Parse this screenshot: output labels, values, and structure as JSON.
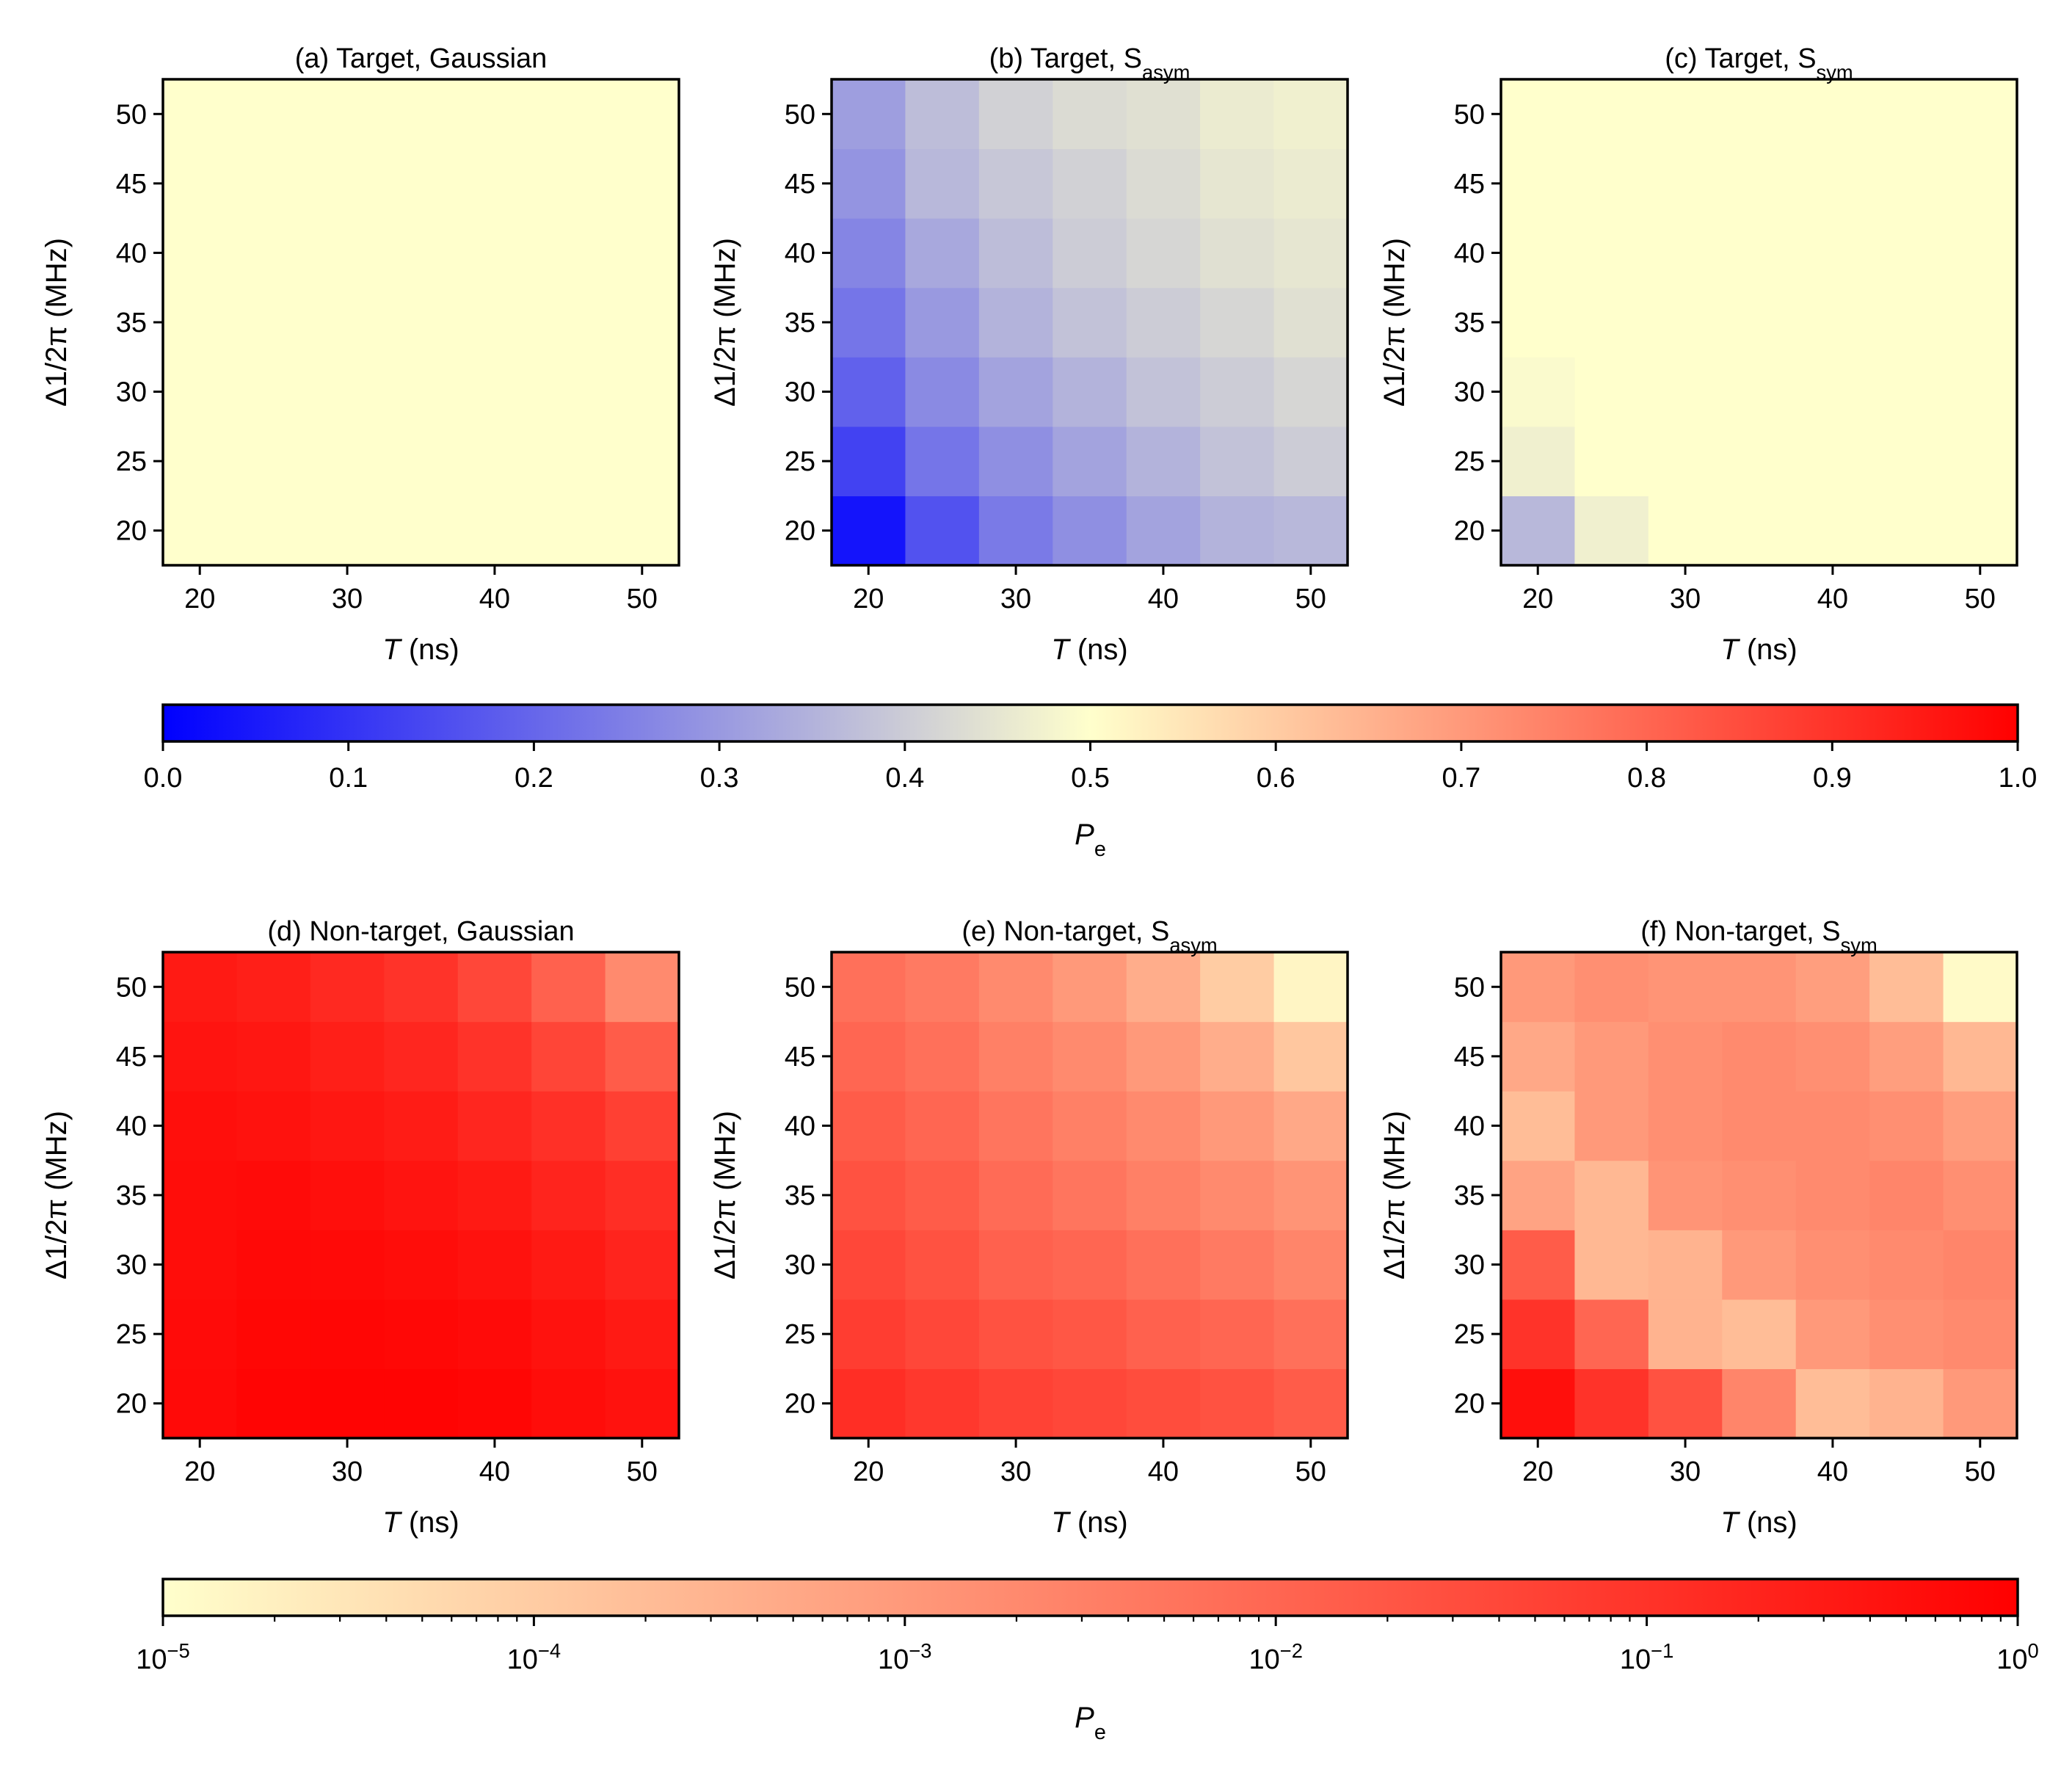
{
  "figure": {
    "x_values": [
      20,
      25,
      30,
      35,
      40,
      45,
      50
    ],
    "y_values": [
      20,
      25,
      30,
      35,
      40,
      45,
      50
    ]
  },
  "colors": {
    "linear_cmap": [
      "#0000ff",
      "#ffffcc",
      "#ff0000"
    ],
    "log_cmap": [
      "#ffffcc",
      "#ff0000"
    ]
  },
  "chart_data": [
    {
      "type": "heatmap",
      "panel": "a",
      "title": "(a) Target, Gaussian",
      "title_sub": "",
      "xlabel_var": "T",
      "xlabel_rest": " (ns)",
      "ylabel": "Δ1/2π (MHz)",
      "xticks": [
        "20",
        "30",
        "40",
        "50"
      ],
      "yticks": [
        "20",
        "25",
        "30",
        "35",
        "40",
        "45",
        "50"
      ],
      "scale": "linear",
      "values": [
        [
          0.5,
          0.5,
          0.5,
          0.5,
          0.5,
          0.5,
          0.5
        ],
        [
          0.5,
          0.5,
          0.5,
          0.5,
          0.5,
          0.5,
          0.5
        ],
        [
          0.5,
          0.5,
          0.5,
          0.5,
          0.5,
          0.5,
          0.5
        ],
        [
          0.5,
          0.5,
          0.5,
          0.5,
          0.5,
          0.5,
          0.5
        ],
        [
          0.5,
          0.5,
          0.5,
          0.5,
          0.5,
          0.5,
          0.5
        ],
        [
          0.5,
          0.5,
          0.5,
          0.5,
          0.5,
          0.5,
          0.5
        ],
        [
          0.5,
          0.5,
          0.5,
          0.5,
          0.5,
          0.5,
          0.5
        ]
      ]
    },
    {
      "type": "heatmap",
      "panel": "b",
      "title": "(b) Target, S",
      "title_sub": "asym",
      "xlabel_var": "T",
      "xlabel_rest": " (ns)",
      "ylabel": "Δ1/2π (MHz)",
      "xticks": [
        "20",
        "30",
        "40",
        "50"
      ],
      "yticks": [
        "20",
        "25",
        "30",
        "35",
        "40",
        "45",
        "50"
      ],
      "scale": "linear",
      "values": [
        [
          0.04,
          0.16,
          0.24,
          0.28,
          0.32,
          0.35,
          0.36
        ],
        [
          0.13,
          0.23,
          0.28,
          0.32,
          0.35,
          0.38,
          0.4
        ],
        [
          0.19,
          0.27,
          0.32,
          0.35,
          0.38,
          0.4,
          0.42
        ],
        [
          0.23,
          0.3,
          0.35,
          0.38,
          0.4,
          0.42,
          0.44
        ],
        [
          0.26,
          0.33,
          0.37,
          0.4,
          0.42,
          0.44,
          0.45
        ],
        [
          0.29,
          0.36,
          0.39,
          0.41,
          0.43,
          0.45,
          0.46
        ],
        [
          0.31,
          0.37,
          0.41,
          0.43,
          0.44,
          0.46,
          0.47
        ]
      ]
    },
    {
      "type": "heatmap",
      "panel": "c",
      "title": "(c) Target, S",
      "title_sub": "sym",
      "xlabel_var": "T",
      "xlabel_rest": " (ns)",
      "ylabel": "Δ1/2π (MHz)",
      "xticks": [
        "20",
        "30",
        "40",
        "50"
      ],
      "yticks": [
        "20",
        "25",
        "30",
        "35",
        "40",
        "45",
        "50"
      ],
      "scale": "linear",
      "values": [
        [
          0.36,
          0.47,
          0.5,
          0.5,
          0.5,
          0.5,
          0.5
        ],
        [
          0.47,
          0.5,
          0.5,
          0.5,
          0.5,
          0.5,
          0.5
        ],
        [
          0.49,
          0.5,
          0.5,
          0.5,
          0.5,
          0.5,
          0.5
        ],
        [
          0.5,
          0.5,
          0.5,
          0.5,
          0.5,
          0.5,
          0.5
        ],
        [
          0.5,
          0.5,
          0.5,
          0.5,
          0.5,
          0.5,
          0.5
        ],
        [
          0.5,
          0.5,
          0.5,
          0.5,
          0.5,
          0.5,
          0.5
        ],
        [
          0.5,
          0.5,
          0.5,
          0.5,
          0.5,
          0.5,
          0.5
        ]
      ]
    },
    {
      "type": "heatmap",
      "panel": "d",
      "title": "(d) Non-target, Gaussian",
      "title_sub": "",
      "xlabel_var": "T",
      "xlabel_rest": " (ns)",
      "ylabel": "Δ1/2π (MHz)",
      "xticks": [
        "20",
        "30",
        "40",
        "50"
      ],
      "yticks": [
        "20",
        "25",
        "30",
        "35",
        "40",
        "45",
        "50"
      ],
      "scale": "log10",
      "values": [
        [
          -0.2,
          -0.1,
          -0.07,
          -0.08,
          -0.12,
          -0.25,
          -0.35
        ],
        [
          -0.22,
          -0.13,
          -0.12,
          -0.15,
          -0.22,
          -0.35,
          -0.5
        ],
        [
          -0.25,
          -0.18,
          -0.2,
          -0.25,
          -0.35,
          -0.5,
          -0.7
        ],
        [
          -0.25,
          -0.22,
          -0.3,
          -0.4,
          -0.5,
          -0.7,
          -0.9
        ],
        [
          -0.3,
          -0.35,
          -0.45,
          -0.55,
          -0.75,
          -0.95,
          -1.25
        ],
        [
          -0.4,
          -0.45,
          -0.6,
          -0.75,
          -1.0,
          -1.35,
          -1.8
        ],
        [
          -0.5,
          -0.6,
          -0.8,
          -1.0,
          -1.4,
          -1.9,
          -2.7
        ]
      ]
    },
    {
      "type": "heatmap",
      "panel": "e",
      "title": "(e) Non-target, S",
      "title_sub": "asym",
      "xlabel_var": "T",
      "xlabel_rest": " (ns)",
      "ylabel": "Δ1/2π (MHz)",
      "xticks": [
        "20",
        "30",
        "40",
        "50"
      ],
      "yticks": [
        "20",
        "25",
        "30",
        "35",
        "40",
        "45",
        "50"
      ],
      "scale": "log10",
      "values": [
        [
          -0.9,
          -1.1,
          -1.3,
          -1.4,
          -1.5,
          -1.6,
          -1.8
        ],
        [
          -1.2,
          -1.4,
          -1.6,
          -1.7,
          -1.9,
          -2.0,
          -2.2
        ],
        [
          -1.4,
          -1.6,
          -1.9,
          -2.0,
          -2.2,
          -2.4,
          -2.6
        ],
        [
          -1.6,
          -1.8,
          -2.1,
          -2.3,
          -2.5,
          -2.7,
          -2.9
        ],
        [
          -1.8,
          -2.0,
          -2.3,
          -2.5,
          -2.7,
          -3.0,
          -3.3
        ],
        [
          -2.0,
          -2.2,
          -2.5,
          -2.7,
          -3.0,
          -3.4,
          -3.9
        ],
        [
          -2.2,
          -2.4,
          -2.7,
          -3.0,
          -3.4,
          -4.0,
          -4.8
        ]
      ]
    },
    {
      "type": "heatmap",
      "panel": "f",
      "title": "(f) Non-target, S",
      "title_sub": "sym",
      "xlabel_var": "T",
      "xlabel_rest": " (ns)",
      "ylabel": "Δ1/2π (MHz)",
      "xticks": [
        "20",
        "30",
        "40",
        "50"
      ],
      "yticks": [
        "20",
        "25",
        "30",
        "35",
        "40",
        "45",
        "50"
      ],
      "scale": "log10",
      "values": [
        [
          -0.3,
          -1.0,
          -1.6,
          -2.6,
          -3.7,
          -3.5,
          -3.0
        ],
        [
          -1.0,
          -2.0,
          -3.5,
          -3.7,
          -3.0,
          -2.8,
          -2.7
        ],
        [
          -1.8,
          -3.6,
          -3.5,
          -3.0,
          -2.8,
          -2.7,
          -2.6
        ],
        [
          -3.2,
          -3.6,
          -2.9,
          -2.8,
          -2.7,
          -2.6,
          -2.8
        ],
        [
          -3.7,
          -3.0,
          -2.8,
          -2.7,
          -2.7,
          -2.8,
          -3.1
        ],
        [
          -3.3,
          -3.0,
          -2.8,
          -2.7,
          -2.8,
          -3.1,
          -3.6
        ],
        [
          -3.0,
          -2.8,
          -2.9,
          -2.9,
          -3.1,
          -3.7,
          -4.9
        ]
      ]
    }
  ],
  "colorbars": [
    {
      "scale": "linear",
      "min": 0,
      "max": 1,
      "ticks": [
        "0.0",
        "0.1",
        "0.2",
        "0.3",
        "0.4",
        "0.5",
        "0.6",
        "0.7",
        "0.8",
        "0.9",
        "1.0"
      ],
      "label_var": "P",
      "label_sub": "e"
    },
    {
      "scale": "log",
      "min_exp": -5,
      "max_exp": 0,
      "ticks": [
        {
          "base": "10",
          "exp": "−5"
        },
        {
          "base": "10",
          "exp": "−4"
        },
        {
          "base": "10",
          "exp": "−3"
        },
        {
          "base": "10",
          "exp": "−2"
        },
        {
          "base": "10",
          "exp": "−1"
        },
        {
          "base": "10",
          "exp": "0"
        }
      ],
      "label_var": "P",
      "label_sub": "e"
    }
  ]
}
